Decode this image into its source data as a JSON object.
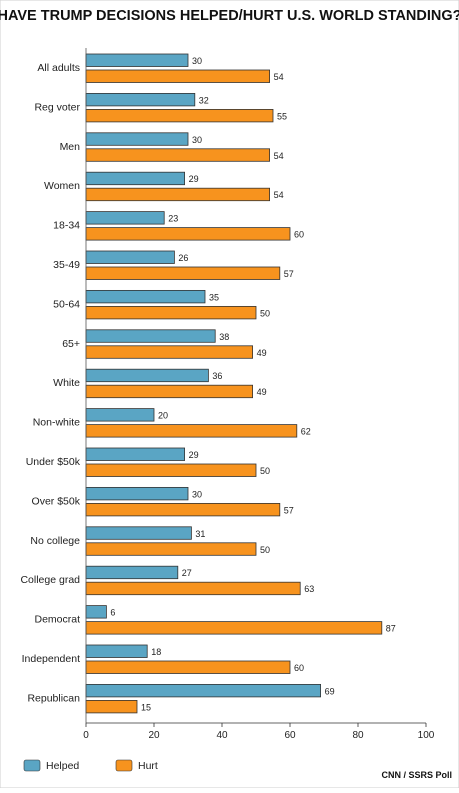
{
  "chart_data": {
    "type": "bar",
    "orientation": "horizontal",
    "title": "HAVE TRUMP DECISIONS HELPED/HURT U.S. WORLD STANDING?",
    "source": "CNN / SSRS Poll",
    "categories": [
      "All adults",
      "Reg voter",
      "Men",
      "Women",
      "18-34",
      "35-49",
      "50-64",
      "65+",
      "White",
      "Non-white",
      "Under $50k",
      "Over $50k",
      "No college",
      "College grad",
      "Democrat",
      "Independent",
      "Republican"
    ],
    "series": [
      {
        "name": "Helped",
        "color": "#5aa5c4",
        "values": [
          30,
          32,
          30,
          29,
          23,
          26,
          35,
          38,
          36,
          20,
          29,
          30,
          31,
          27,
          6,
          18,
          69
        ]
      },
      {
        "name": "Hurt",
        "color": "#f7931e",
        "values": [
          54,
          55,
          54,
          54,
          60,
          57,
          50,
          49,
          49,
          62,
          50,
          57,
          50,
          63,
          87,
          60,
          15
        ]
      }
    ],
    "xlim": [
      0,
      100
    ],
    "xticks": [
      "0",
      "20",
      "40",
      "60",
      "80",
      "100"
    ],
    "grid": false,
    "legend_position": "bottom-left"
  }
}
